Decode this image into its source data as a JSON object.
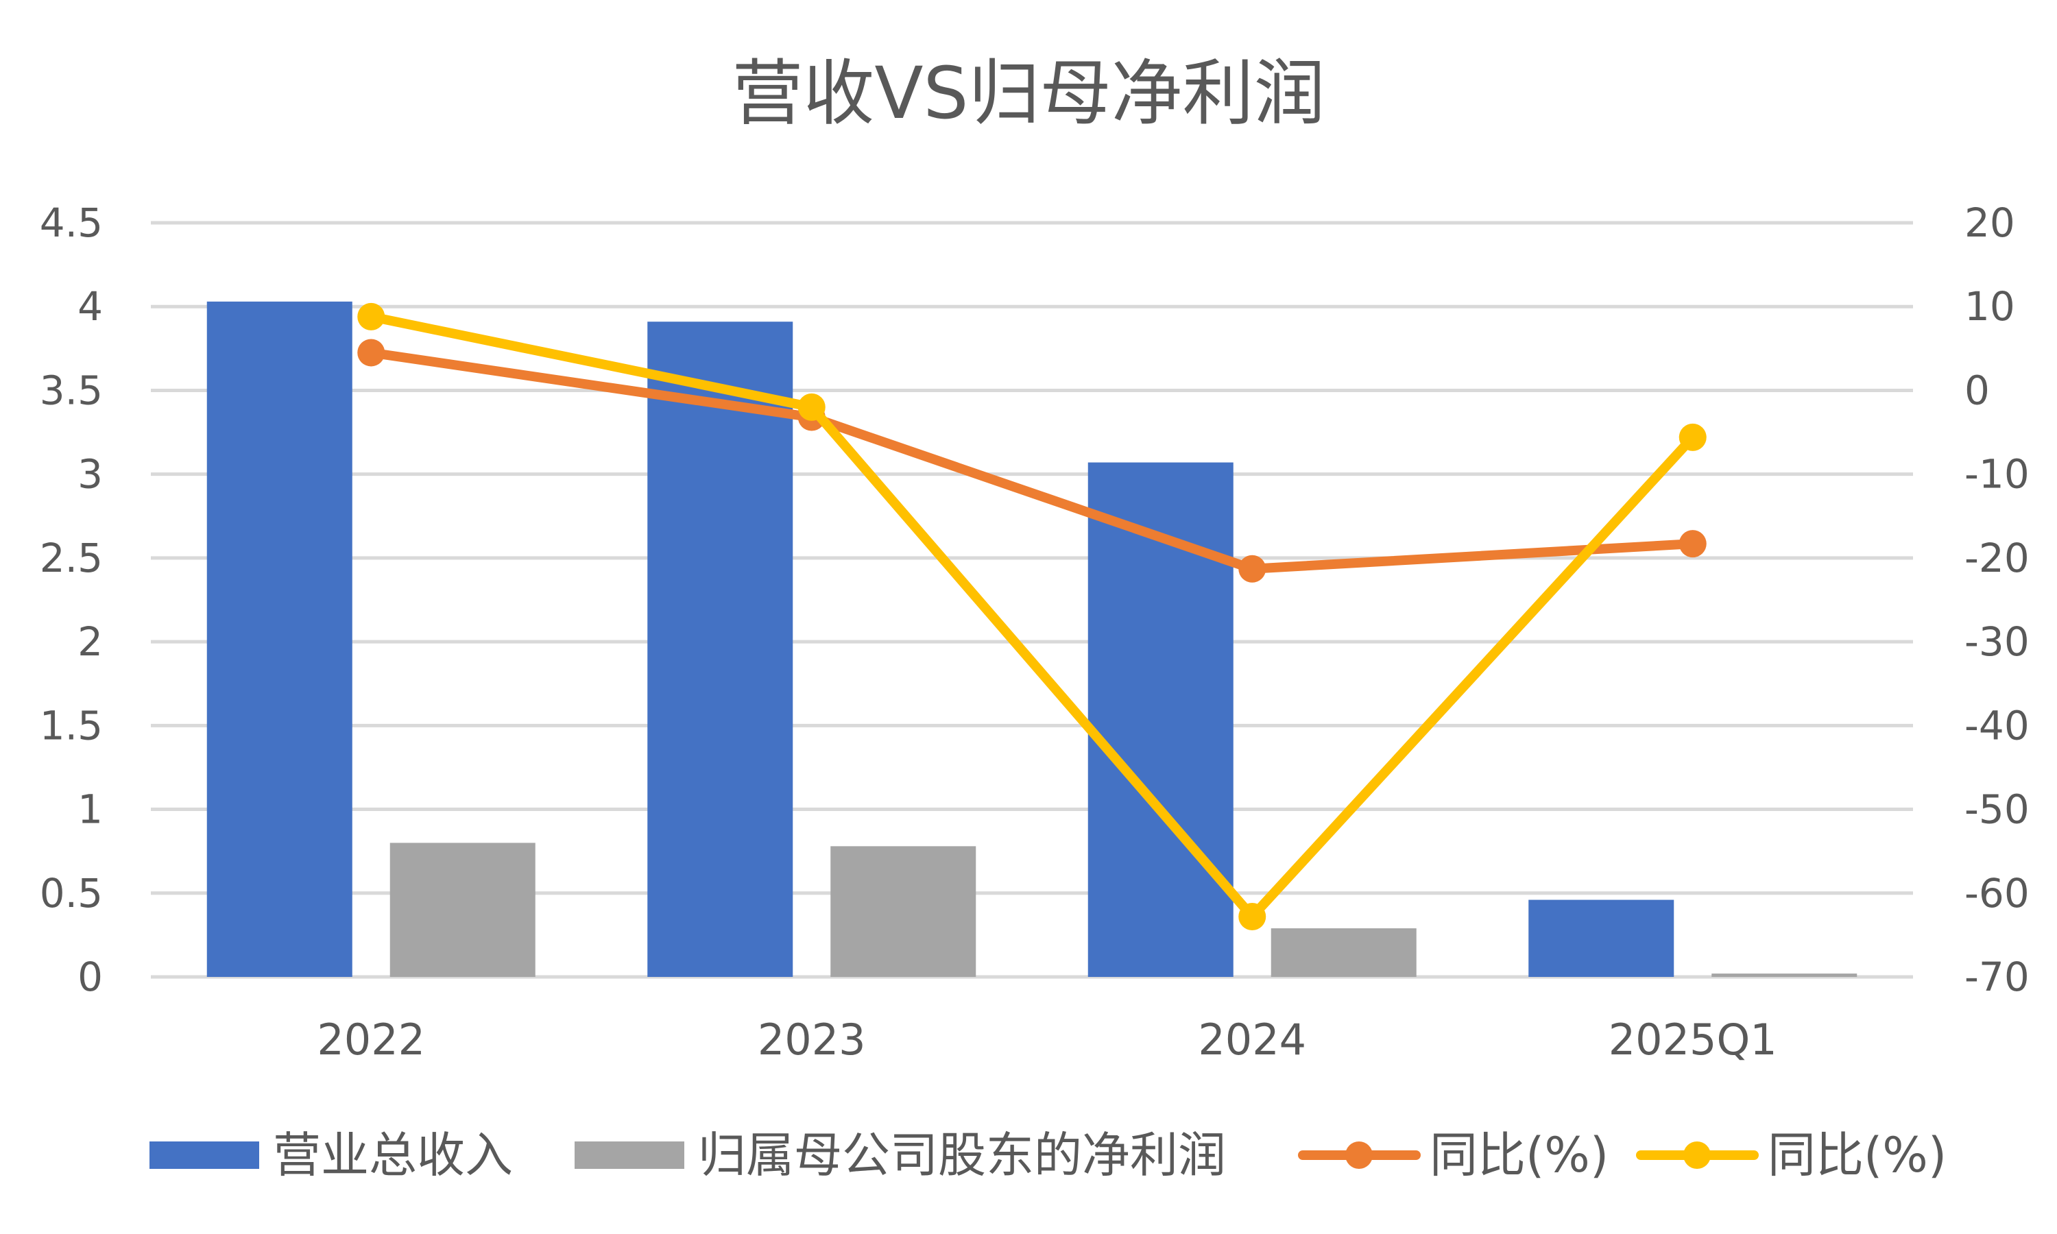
{
  "chart_data": {
    "type": "bar",
    "title": "营收VS归母净利润",
    "categories": [
      "2022",
      "2023",
      "2024",
      "2025Q1"
    ],
    "left_axis": {
      "range": [
        0,
        4.5
      ],
      "ticks": [
        "0",
        "0.5",
        "1",
        "1.5",
        "2",
        "2.5",
        "3",
        "3.5",
        "4",
        "4.5"
      ]
    },
    "right_axis": {
      "range": [
        -70,
        20
      ],
      "ticks": [
        "-70",
        "-60",
        "-50",
        "-40",
        "-30",
        "-20",
        "-10",
        "0",
        "10",
        "20"
      ]
    },
    "series": [
      {
        "name": "营业总收入",
        "type": "bar",
        "axis": "left",
        "color": "#4472c4",
        "values": [
          4.03,
          3.91,
          3.07,
          0.46
        ]
      },
      {
        "name": "归属母公司股东的净利润",
        "type": "bar",
        "axis": "left",
        "color": "#a5a5a5",
        "values": [
          0.8,
          0.78,
          0.29,
          0.02
        ]
      },
      {
        "name": "同比(%)",
        "type": "line",
        "axis": "right",
        "color": "#ed7d31",
        "values": [
          4.5,
          -3.2,
          -21.3,
          -18.3
        ]
      },
      {
        "name": "同比(%)",
        "type": "line",
        "axis": "right",
        "color": "#ffc000",
        "values": [
          8.8,
          -2.0,
          -62.8,
          -5.6
        ]
      }
    ],
    "grid": true,
    "legend_position": "bottom"
  }
}
